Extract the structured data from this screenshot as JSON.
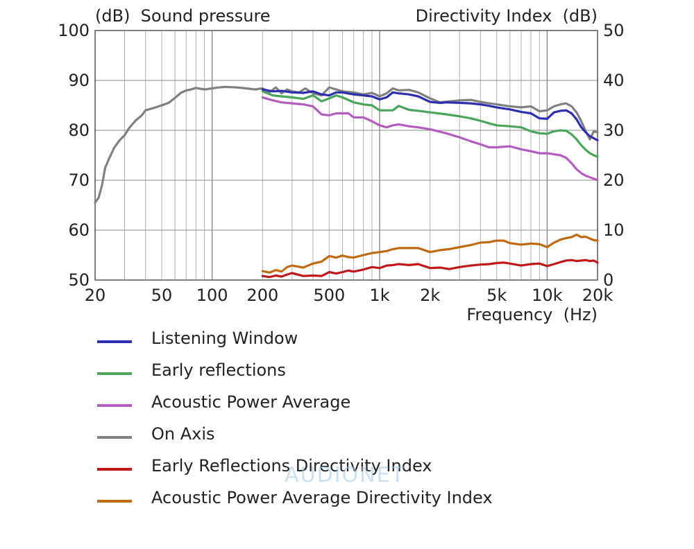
{
  "chart_data": {
    "type": "line",
    "left_axis_label": "(dB)  Sound pressure",
    "right_axis_label": "Directivity Index  (dB)",
    "xlabel": "Frequency  (Hz)",
    "x_scale": "log",
    "xlim": [
      20,
      20000
    ],
    "ylim_left": [
      50,
      100
    ],
    "ylim_right": [
      0,
      50
    ],
    "x_ticks": [
      {
        "value": 20,
        "label": "20"
      },
      {
        "value": 50,
        "label": "50"
      },
      {
        "value": 100,
        "label": "100"
      },
      {
        "value": 200,
        "label": "200"
      },
      {
        "value": 500,
        "label": "500"
      },
      {
        "value": 1000,
        "label": "1k"
      },
      {
        "value": 2000,
        "label": "2k"
      },
      {
        "value": 5000,
        "label": "5k"
      },
      {
        "value": 10000,
        "label": "10k"
      },
      {
        "value": 20000,
        "label": "20k"
      }
    ],
    "y_left_ticks": [
      "50",
      "60",
      "70",
      "80",
      "90",
      "100"
    ],
    "y_right_ticks": [
      "0",
      "10",
      "20",
      "30",
      "40",
      "50"
    ],
    "grid": true,
    "legend_position": "bottom",
    "series": [
      {
        "name": "Listening Window",
        "color": "#2b2fb0",
        "axis": "left",
        "x": [
          200,
          230,
          260,
          300,
          350,
          400,
          450,
          500,
          550,
          600,
          700,
          800,
          900,
          1000,
          1100,
          1200,
          1300,
          1500,
          1700,
          2000,
          2300,
          2500,
          3000,
          3500,
          4000,
          4500,
          5000,
          6000,
          7000,
          8000,
          9000,
          10000,
          11000,
          12000,
          13000,
          14000,
          15000,
          16000,
          17000,
          18000,
          19000,
          20000
        ],
        "y": [
          88.2,
          87.8,
          87.9,
          87.6,
          87.5,
          87.8,
          87.2,
          87.0,
          87.6,
          87.6,
          87.2,
          87.0,
          86.8,
          86.2,
          86.6,
          87.6,
          87.4,
          87.2,
          86.8,
          85.7,
          85.5,
          85.6,
          85.5,
          85.4,
          85.2,
          84.9,
          84.6,
          84.2,
          83.7,
          83.4,
          82.4,
          82.3,
          83.6,
          83.9,
          84.0,
          83.4,
          82.2,
          80.6,
          79.6,
          78.8,
          78.4,
          78.0
        ]
      },
      {
        "name": "Early reflections",
        "color": "#4aa55a",
        "axis": "left",
        "x": [
          200,
          230,
          260,
          300,
          350,
          400,
          450,
          500,
          550,
          600,
          700,
          800,
          900,
          1000,
          1100,
          1200,
          1300,
          1500,
          1700,
          2000,
          2500,
          3000,
          3500,
          4000,
          4500,
          5000,
          6000,
          7000,
          8000,
          9000,
          10000,
          11000,
          12000,
          13000,
          14000,
          15000,
          16000,
          17000,
          18000,
          19000,
          20000
        ],
        "y": [
          87.8,
          87.0,
          86.8,
          86.6,
          86.3,
          87.0,
          85.8,
          86.4,
          87.0,
          86.6,
          85.6,
          85.2,
          85.0,
          84.0,
          84.0,
          84.0,
          84.9,
          84.1,
          83.9,
          83.6,
          83.2,
          82.8,
          82.4,
          81.9,
          81.4,
          81.0,
          80.8,
          80.6,
          79.8,
          79.4,
          79.3,
          79.8,
          80.0,
          79.9,
          79.2,
          78.2,
          77.0,
          76.1,
          75.4,
          75.0,
          74.7
        ]
      },
      {
        "name": "Acoustic Power Average",
        "color": "#b35bbf",
        "axis": "left",
        "x": [
          200,
          230,
          260,
          300,
          350,
          400,
          450,
          500,
          550,
          600,
          650,
          700,
          800,
          900,
          1000,
          1100,
          1200,
          1300,
          1500,
          1700,
          2000,
          2500,
          3000,
          3500,
          4000,
          4500,
          5000,
          6000,
          7000,
          8000,
          9000,
          10000,
          11000,
          12000,
          13000,
          14000,
          15000,
          16000,
          17000,
          18000,
          19000,
          20000
        ],
        "y": [
          86.6,
          86.0,
          85.6,
          85.4,
          85.2,
          84.8,
          83.2,
          83.0,
          83.4,
          83.4,
          83.4,
          82.6,
          82.6,
          81.8,
          81.0,
          80.6,
          81.0,
          81.2,
          80.8,
          80.6,
          80.2,
          79.4,
          78.6,
          77.8,
          77.2,
          76.6,
          76.6,
          76.8,
          76.2,
          75.8,
          75.4,
          75.4,
          75.2,
          75.0,
          74.5,
          73.4,
          72.2,
          71.4,
          70.9,
          70.6,
          70.3,
          70.0
        ]
      },
      {
        "name": "On Axis",
        "color": "#808080",
        "axis": "left",
        "x": [
          20,
          21,
          22,
          23,
          24,
          26,
          28,
          30,
          32,
          35,
          38,
          40,
          45,
          50,
          55,
          60,
          65,
          70,
          75,
          80,
          90,
          100,
          110,
          120,
          140,
          160,
          180,
          200,
          220,
          240,
          260,
          280,
          300,
          330,
          360,
          400,
          450,
          500,
          550,
          600,
          700,
          800,
          900,
          1000,
          1100,
          1200,
          1300,
          1500,
          1700,
          2000,
          2300,
          2600,
          3000,
          3500,
          4000,
          4500,
          5000,
          6000,
          7000,
          8000,
          9000,
          10000,
          11000,
          12000,
          13000,
          14000,
          15000,
          16000,
          17000,
          18000,
          19000,
          20000
        ],
        "y": [
          65.5,
          66.5,
          69.0,
          72.5,
          74.0,
          76.5,
          78.0,
          79.0,
          80.5,
          82.0,
          83.0,
          84.0,
          84.5,
          85.0,
          85.5,
          86.5,
          87.5,
          88.0,
          88.2,
          88.5,
          88.2,
          88.4,
          88.6,
          88.7,
          88.6,
          88.4,
          88.2,
          88.4,
          87.6,
          88.6,
          87.4,
          88.2,
          87.8,
          87.6,
          88.4,
          87.4,
          87.0,
          88.6,
          88.2,
          87.8,
          87.6,
          87.2,
          87.5,
          86.8,
          87.4,
          88.4,
          88.0,
          88.1,
          87.6,
          86.4,
          85.6,
          85.8,
          86.0,
          86.1,
          85.7,
          85.4,
          85.2,
          84.8,
          84.6,
          84.8,
          83.8,
          84.0,
          84.8,
          85.2,
          85.4,
          84.8,
          83.6,
          81.8,
          79.8,
          78.2,
          79.8,
          79.6
        ]
      },
      {
        "name": "Early Reflections Directivity Index",
        "color": "#c01818",
        "axis": "right",
        "x": [
          200,
          220,
          240,
          260,
          280,
          300,
          350,
          400,
          450,
          500,
          550,
          600,
          650,
          700,
          800,
          900,
          1000,
          1100,
          1200,
          1300,
          1500,
          1700,
          2000,
          2300,
          2600,
          3000,
          3500,
          4000,
          4500,
          5000,
          5500,
          6000,
          7000,
          8000,
          9000,
          10000,
          11000,
          12000,
          13000,
          14000,
          15000,
          16000,
          17000,
          18000,
          19000,
          20000
        ],
        "y": [
          0.8,
          0.6,
          0.9,
          0.7,
          1.1,
          1.4,
          0.8,
          0.9,
          0.8,
          1.6,
          1.3,
          1.6,
          1.9,
          1.7,
          2.1,
          2.6,
          2.4,
          2.9,
          3.0,
          3.2,
          3.0,
          3.2,
          2.4,
          2.5,
          2.2,
          2.6,
          2.9,
          3.1,
          3.2,
          3.4,
          3.5,
          3.3,
          2.9,
          3.2,
          3.3,
          2.8,
          3.2,
          3.6,
          3.9,
          4.0,
          3.8,
          3.9,
          4.0,
          3.8,
          3.9,
          3.5
        ]
      },
      {
        "name": "Acoustic Power Average Directivity Index",
        "color": "#c06a10",
        "axis": "right",
        "x": [
          200,
          220,
          240,
          260,
          280,
          300,
          350,
          400,
          450,
          500,
          550,
          600,
          650,
          700,
          800,
          900,
          1000,
          1100,
          1200,
          1300,
          1500,
          1700,
          2000,
          2300,
          2600,
          3000,
          3500,
          4000,
          4500,
          5000,
          5500,
          6000,
          7000,
          8000,
          9000,
          10000,
          11000,
          12000,
          13000,
          14000,
          15000,
          16000,
          17000,
          18000,
          19000,
          20000
        ],
        "y": [
          1.8,
          1.5,
          2.0,
          1.7,
          2.6,
          2.9,
          2.5,
          3.3,
          3.7,
          4.8,
          4.5,
          4.9,
          4.6,
          4.5,
          5.0,
          5.4,
          5.6,
          5.8,
          6.2,
          6.4,
          6.4,
          6.4,
          5.6,
          6.0,
          6.2,
          6.6,
          7.0,
          7.5,
          7.6,
          7.9,
          7.9,
          7.4,
          7.1,
          7.3,
          7.2,
          6.6,
          7.5,
          8.1,
          8.4,
          8.6,
          9.1,
          8.6,
          8.7,
          8.3,
          8.0,
          7.9
        ]
      }
    ]
  },
  "watermark": "AUDIONET"
}
